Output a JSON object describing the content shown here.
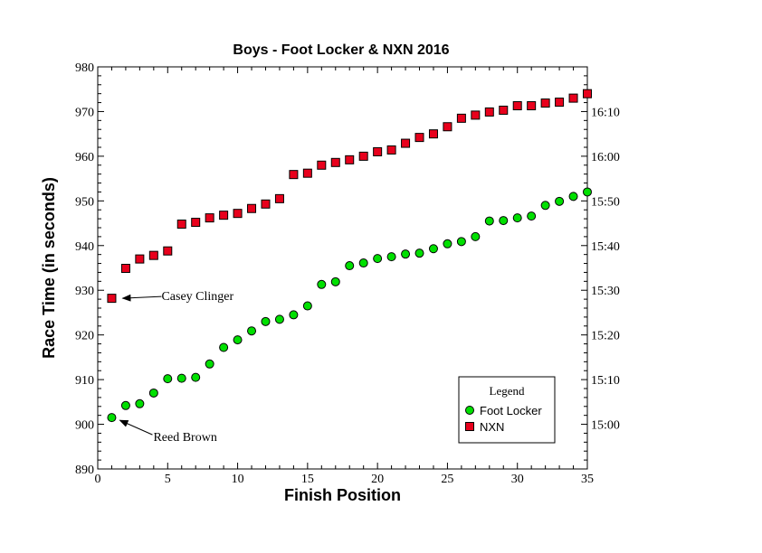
{
  "chart_data": {
    "type": "scatter",
    "title": "Boys - Foot Locker & NXN 2016",
    "xlabel": "Finish Position",
    "ylabel": "Race Time (in seconds)",
    "xlim": [
      0,
      35
    ],
    "ylim": [
      890,
      980
    ],
    "xticks": [
      0,
      5,
      10,
      15,
      20,
      25,
      30,
      35
    ],
    "yticks": [
      890,
      900,
      910,
      920,
      930,
      940,
      950,
      960,
      970,
      980
    ],
    "y2ticks": [
      {
        "value": 900,
        "label": "15:00"
      },
      {
        "value": 910,
        "label": "15:10"
      },
      {
        "value": 920,
        "label": "15:20"
      },
      {
        "value": 930,
        "label": "15:30"
      },
      {
        "value": 940,
        "label": "15:40"
      },
      {
        "value": 950,
        "label": "15:50"
      },
      {
        "value": 960,
        "label": "16:00"
      },
      {
        "value": 970,
        "label": "16:10"
      }
    ],
    "grid": false,
    "legend": {
      "title": "Legend",
      "position": "bottom-right"
    },
    "series": [
      {
        "name": "Foot Locker",
        "marker": "circle",
        "color": "#00e000",
        "x": [
          1,
          2,
          3,
          4,
          5,
          6,
          7,
          8,
          9,
          10,
          11,
          12,
          13,
          14,
          15,
          16,
          17,
          18,
          19,
          20,
          21,
          22,
          23,
          24,
          25,
          26,
          27,
          28,
          29,
          30,
          31,
          32,
          33,
          34,
          35
        ],
        "y": [
          901.5,
          904.2,
          904.6,
          907,
          910.2,
          910.3,
          910.5,
          913.5,
          917.2,
          918.9,
          920.9,
          923,
          923.5,
          924.5,
          926.5,
          931.3,
          931.9,
          935.5,
          936.1,
          937.1,
          937.5,
          938.1,
          938.3,
          939.3,
          940.4,
          940.9,
          942,
          945.5,
          945.6,
          946.2,
          946.6,
          949,
          949.9,
          951,
          952
        ]
      },
      {
        "name": "NXN",
        "marker": "square",
        "color": "#e8001c",
        "x": [
          1,
          2,
          3,
          4,
          5,
          6,
          7,
          8,
          9,
          10,
          11,
          12,
          13,
          14,
          15,
          16,
          17,
          18,
          19,
          20,
          21,
          22,
          23,
          24,
          25,
          26,
          27,
          28,
          29,
          30,
          31,
          32,
          33,
          34,
          35
        ],
        "y": [
          928.2,
          934.9,
          937,
          937.8,
          938.8,
          944.8,
          945.2,
          946.2,
          946.8,
          947.2,
          948.3,
          949.3,
          950.5,
          955.9,
          956.2,
          958,
          958.6,
          959.2,
          960,
          961,
          961.4,
          962.9,
          964.2,
          965,
          966.6,
          968.5,
          969.2,
          969.9,
          970.3,
          971.3,
          971.3,
          971.9,
          972.1,
          973,
          974
        ]
      }
    ],
    "annotations": [
      {
        "text": "Casey Clinger",
        "x": 1,
        "y": 928.2
      },
      {
        "text": "Reed Brown",
        "x": 1,
        "y": 901.5
      }
    ]
  }
}
